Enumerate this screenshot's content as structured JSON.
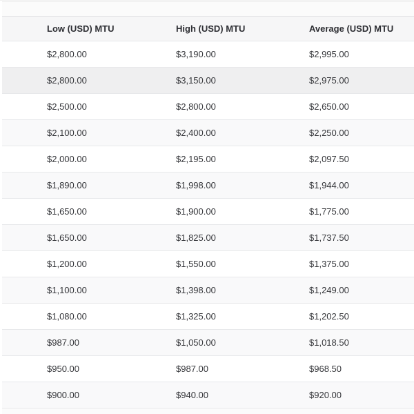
{
  "table": {
    "columns": [
      "Low (USD) MTU",
      "High (USD) MTU",
      "Average (USD) MTU"
    ],
    "rows": [
      [
        "$2,800.00",
        "$3,190.00",
        "$2,995.00"
      ],
      [
        "$2,800.00",
        "$3,150.00",
        "$2,975.00"
      ],
      [
        "$2,500.00",
        "$2,800.00",
        "$2,650.00"
      ],
      [
        "$2,100.00",
        "$2,400.00",
        "$2,250.00"
      ],
      [
        "$2,000.00",
        "$2,195.00",
        "$2,097.50"
      ],
      [
        "$1,890.00",
        "$1,998.00",
        "$1,944.00"
      ],
      [
        "$1,650.00",
        "$1,900.00",
        "$1,775.00"
      ],
      [
        "$1,650.00",
        "$1,825.00",
        "$1,737.50"
      ],
      [
        "$1,200.00",
        "$1,550.00",
        "$1,375.00"
      ],
      [
        "$1,100.00",
        "$1,398.00",
        "$1,249.00"
      ],
      [
        "$1,080.00",
        "$1,325.00",
        "$1,202.50"
      ],
      [
        "$987.00",
        "$1,050.00",
        "$1,018.50"
      ],
      [
        "$950.00",
        "$987.00",
        "$968.50"
      ],
      [
        "$900.00",
        "$940.00",
        "$920.00"
      ]
    ],
    "hovered_row_index": 1
  },
  "colors": {
    "header_bg": "#f6f6f7",
    "row_alt_bg": "#f9f9fa",
    "row_hover_bg": "#efeff0",
    "border": "#e7e8ea",
    "text": "#35363a"
  }
}
